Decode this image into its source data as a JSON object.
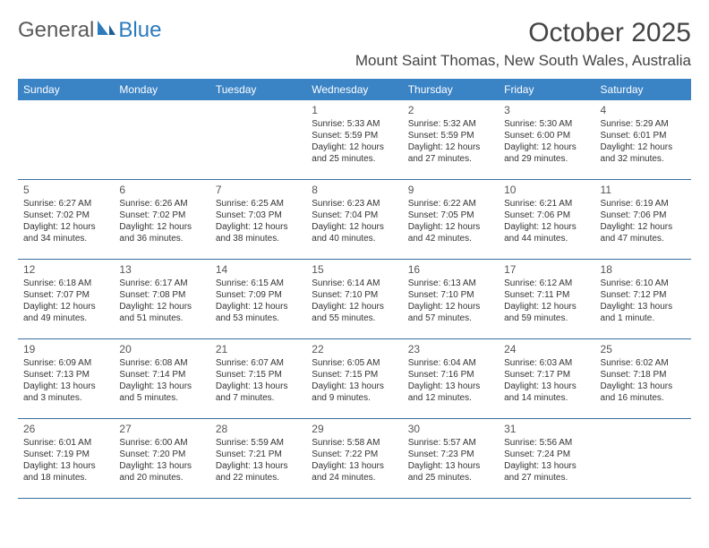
{
  "logo": {
    "text_general": "General",
    "text_blue": "Blue"
  },
  "header": {
    "month_title": "October 2025",
    "location": "Mount Saint Thomas, New South Wales, Australia"
  },
  "colors": {
    "header_bg": "#3a83c5",
    "header_text": "#ffffff",
    "row_border": "#3a6fa0",
    "body_text": "#333333",
    "logo_blue": "#2b7bbd",
    "logo_grey": "#5a5a5a"
  },
  "days_of_week": [
    "Sunday",
    "Monday",
    "Tuesday",
    "Wednesday",
    "Thursday",
    "Friday",
    "Saturday"
  ],
  "weeks": [
    [
      {
        "day": "",
        "sunrise": "",
        "sunset": "",
        "daylight": ""
      },
      {
        "day": "",
        "sunrise": "",
        "sunset": "",
        "daylight": ""
      },
      {
        "day": "",
        "sunrise": "",
        "sunset": "",
        "daylight": ""
      },
      {
        "day": "1",
        "sunrise": "Sunrise: 5:33 AM",
        "sunset": "Sunset: 5:59 PM",
        "daylight": "Daylight: 12 hours and 25 minutes."
      },
      {
        "day": "2",
        "sunrise": "Sunrise: 5:32 AM",
        "sunset": "Sunset: 5:59 PM",
        "daylight": "Daylight: 12 hours and 27 minutes."
      },
      {
        "day": "3",
        "sunrise": "Sunrise: 5:30 AM",
        "sunset": "Sunset: 6:00 PM",
        "daylight": "Daylight: 12 hours and 29 minutes."
      },
      {
        "day": "4",
        "sunrise": "Sunrise: 5:29 AM",
        "sunset": "Sunset: 6:01 PM",
        "daylight": "Daylight: 12 hours and 32 minutes."
      }
    ],
    [
      {
        "day": "5",
        "sunrise": "Sunrise: 6:27 AM",
        "sunset": "Sunset: 7:02 PM",
        "daylight": "Daylight: 12 hours and 34 minutes."
      },
      {
        "day": "6",
        "sunrise": "Sunrise: 6:26 AM",
        "sunset": "Sunset: 7:02 PM",
        "daylight": "Daylight: 12 hours and 36 minutes."
      },
      {
        "day": "7",
        "sunrise": "Sunrise: 6:25 AM",
        "sunset": "Sunset: 7:03 PM",
        "daylight": "Daylight: 12 hours and 38 minutes."
      },
      {
        "day": "8",
        "sunrise": "Sunrise: 6:23 AM",
        "sunset": "Sunset: 7:04 PM",
        "daylight": "Daylight: 12 hours and 40 minutes."
      },
      {
        "day": "9",
        "sunrise": "Sunrise: 6:22 AM",
        "sunset": "Sunset: 7:05 PM",
        "daylight": "Daylight: 12 hours and 42 minutes."
      },
      {
        "day": "10",
        "sunrise": "Sunrise: 6:21 AM",
        "sunset": "Sunset: 7:06 PM",
        "daylight": "Daylight: 12 hours and 44 minutes."
      },
      {
        "day": "11",
        "sunrise": "Sunrise: 6:19 AM",
        "sunset": "Sunset: 7:06 PM",
        "daylight": "Daylight: 12 hours and 47 minutes."
      }
    ],
    [
      {
        "day": "12",
        "sunrise": "Sunrise: 6:18 AM",
        "sunset": "Sunset: 7:07 PM",
        "daylight": "Daylight: 12 hours and 49 minutes."
      },
      {
        "day": "13",
        "sunrise": "Sunrise: 6:17 AM",
        "sunset": "Sunset: 7:08 PM",
        "daylight": "Daylight: 12 hours and 51 minutes."
      },
      {
        "day": "14",
        "sunrise": "Sunrise: 6:15 AM",
        "sunset": "Sunset: 7:09 PM",
        "daylight": "Daylight: 12 hours and 53 minutes."
      },
      {
        "day": "15",
        "sunrise": "Sunrise: 6:14 AM",
        "sunset": "Sunset: 7:10 PM",
        "daylight": "Daylight: 12 hours and 55 minutes."
      },
      {
        "day": "16",
        "sunrise": "Sunrise: 6:13 AM",
        "sunset": "Sunset: 7:10 PM",
        "daylight": "Daylight: 12 hours and 57 minutes."
      },
      {
        "day": "17",
        "sunrise": "Sunrise: 6:12 AM",
        "sunset": "Sunset: 7:11 PM",
        "daylight": "Daylight: 12 hours and 59 minutes."
      },
      {
        "day": "18",
        "sunrise": "Sunrise: 6:10 AM",
        "sunset": "Sunset: 7:12 PM",
        "daylight": "Daylight: 13 hours and 1 minute."
      }
    ],
    [
      {
        "day": "19",
        "sunrise": "Sunrise: 6:09 AM",
        "sunset": "Sunset: 7:13 PM",
        "daylight": "Daylight: 13 hours and 3 minutes."
      },
      {
        "day": "20",
        "sunrise": "Sunrise: 6:08 AM",
        "sunset": "Sunset: 7:14 PM",
        "daylight": "Daylight: 13 hours and 5 minutes."
      },
      {
        "day": "21",
        "sunrise": "Sunrise: 6:07 AM",
        "sunset": "Sunset: 7:15 PM",
        "daylight": "Daylight: 13 hours and 7 minutes."
      },
      {
        "day": "22",
        "sunrise": "Sunrise: 6:05 AM",
        "sunset": "Sunset: 7:15 PM",
        "daylight": "Daylight: 13 hours and 9 minutes."
      },
      {
        "day": "23",
        "sunrise": "Sunrise: 6:04 AM",
        "sunset": "Sunset: 7:16 PM",
        "daylight": "Daylight: 13 hours and 12 minutes."
      },
      {
        "day": "24",
        "sunrise": "Sunrise: 6:03 AM",
        "sunset": "Sunset: 7:17 PM",
        "daylight": "Daylight: 13 hours and 14 minutes."
      },
      {
        "day": "25",
        "sunrise": "Sunrise: 6:02 AM",
        "sunset": "Sunset: 7:18 PM",
        "daylight": "Daylight: 13 hours and 16 minutes."
      }
    ],
    [
      {
        "day": "26",
        "sunrise": "Sunrise: 6:01 AM",
        "sunset": "Sunset: 7:19 PM",
        "daylight": "Daylight: 13 hours and 18 minutes."
      },
      {
        "day": "27",
        "sunrise": "Sunrise: 6:00 AM",
        "sunset": "Sunset: 7:20 PM",
        "daylight": "Daylight: 13 hours and 20 minutes."
      },
      {
        "day": "28",
        "sunrise": "Sunrise: 5:59 AM",
        "sunset": "Sunset: 7:21 PM",
        "daylight": "Daylight: 13 hours and 22 minutes."
      },
      {
        "day": "29",
        "sunrise": "Sunrise: 5:58 AM",
        "sunset": "Sunset: 7:22 PM",
        "daylight": "Daylight: 13 hours and 24 minutes."
      },
      {
        "day": "30",
        "sunrise": "Sunrise: 5:57 AM",
        "sunset": "Sunset: 7:23 PM",
        "daylight": "Daylight: 13 hours and 25 minutes."
      },
      {
        "day": "31",
        "sunrise": "Sunrise: 5:56 AM",
        "sunset": "Sunset: 7:24 PM",
        "daylight": "Daylight: 13 hours and 27 minutes."
      },
      {
        "day": "",
        "sunrise": "",
        "sunset": "",
        "daylight": ""
      }
    ]
  ]
}
